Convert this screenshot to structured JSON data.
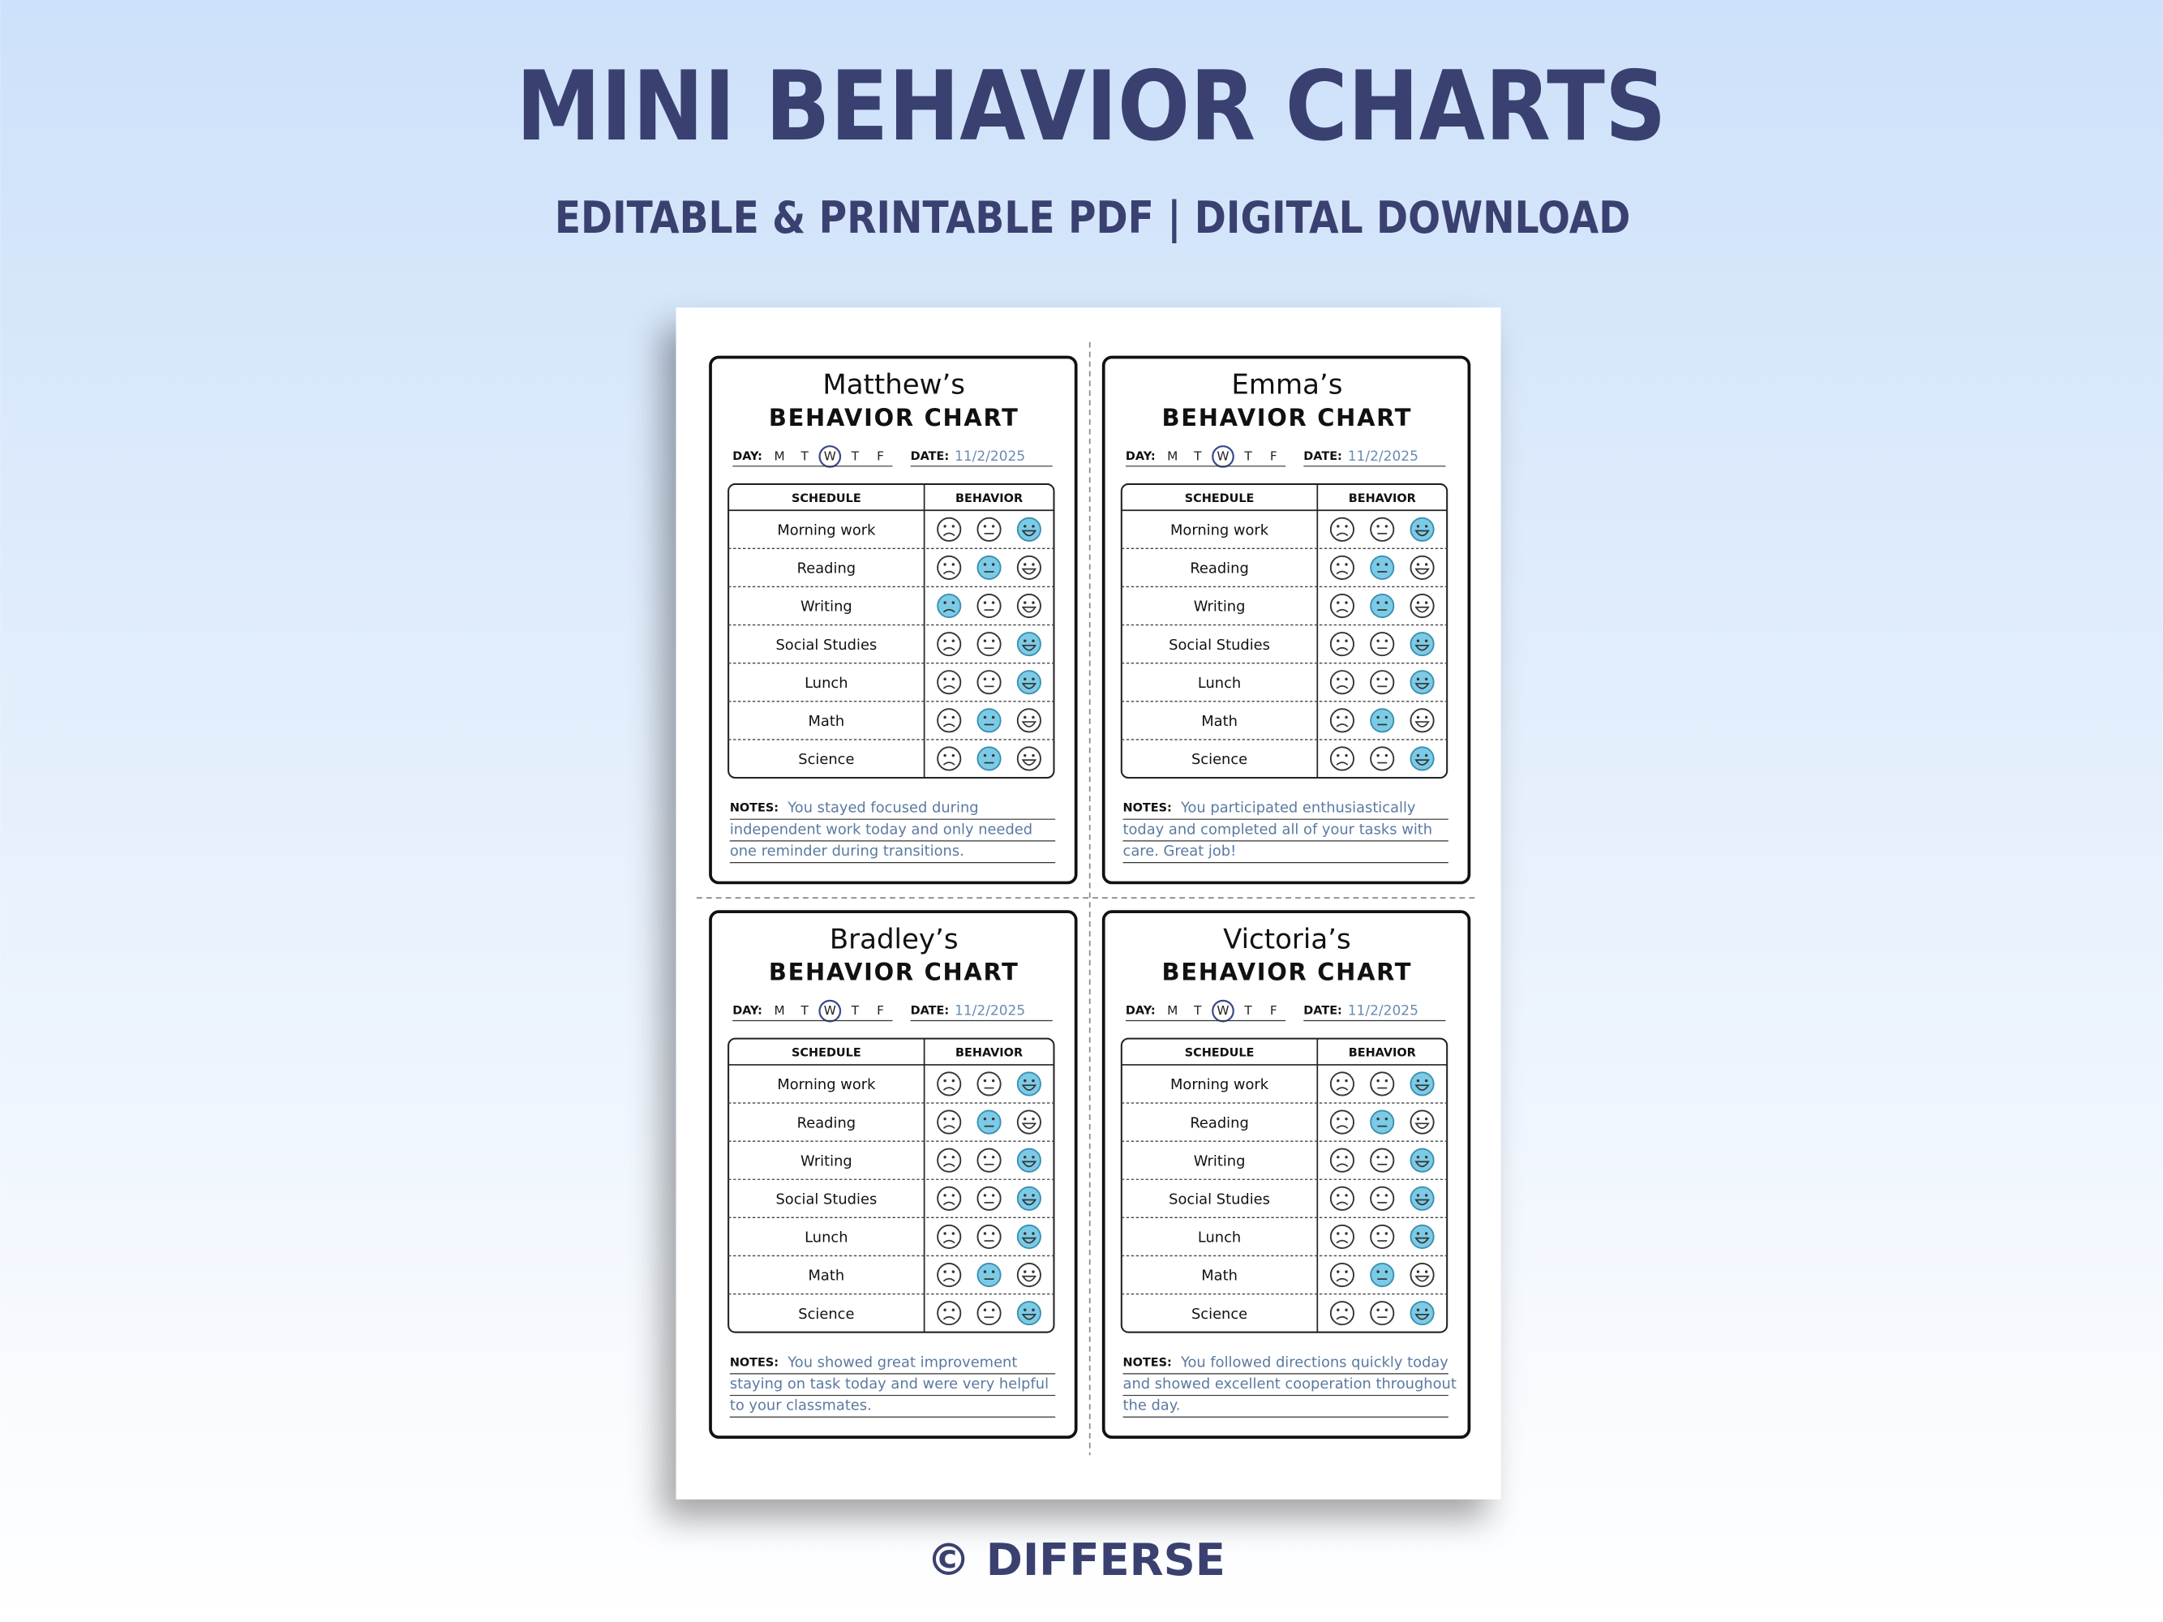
{
  "header": {
    "title": "MINI BEHAVIOR CHARTS",
    "subtitle": "EDITABLE & PRINTABLE PDF | DIGITAL DOWNLOAD"
  },
  "card_labels": {
    "heading": "BEHAVIOR CHART",
    "day": "DAY:",
    "days": [
      "M",
      "T",
      "W",
      "T",
      "F"
    ],
    "date": "DATE:",
    "schedule": "SCHEDULE",
    "behavior": "BEHAVIOR",
    "notes": "NOTES:",
    "subjects": [
      "Morning work",
      "Reading",
      "Writing",
      "Social Studies",
      "Lunch",
      "Math",
      "Science"
    ]
  },
  "cards": [
    {
      "name": "Matthew’s",
      "date": "11/2/2025",
      "selected_day": 2,
      "ratings": [
        3,
        2,
        1,
        3,
        3,
        2,
        2
      ],
      "notes": [
        "You stayed focused during",
        "independent work today and only needed",
        "one reminder during transitions."
      ]
    },
    {
      "name": "Emma’s",
      "date": "11/2/2025",
      "selected_day": 2,
      "ratings": [
        3,
        2,
        2,
        3,
        3,
        2,
        3
      ],
      "notes": [
        "You participated enthusiastically",
        "today and completed all of your tasks with",
        "care. Great job!"
      ]
    },
    {
      "name": "Bradley’s",
      "date": "11/2/2025",
      "selected_day": 2,
      "ratings": [
        3,
        2,
        3,
        3,
        3,
        2,
        3
      ],
      "notes": [
        "You showed great improvement",
        "staying on task today and were very helpful",
        "to your classmates."
      ]
    },
    {
      "name": "Victoria’s",
      "date": "11/2/2025",
      "selected_day": 2,
      "ratings": [
        3,
        2,
        3,
        3,
        3,
        2,
        3
      ],
      "notes": [
        "You followed directions quickly today",
        "and showed excellent cooperation throughout",
        "the day."
      ]
    }
  ],
  "footer": {
    "credit": "© DIFFERSE"
  }
}
